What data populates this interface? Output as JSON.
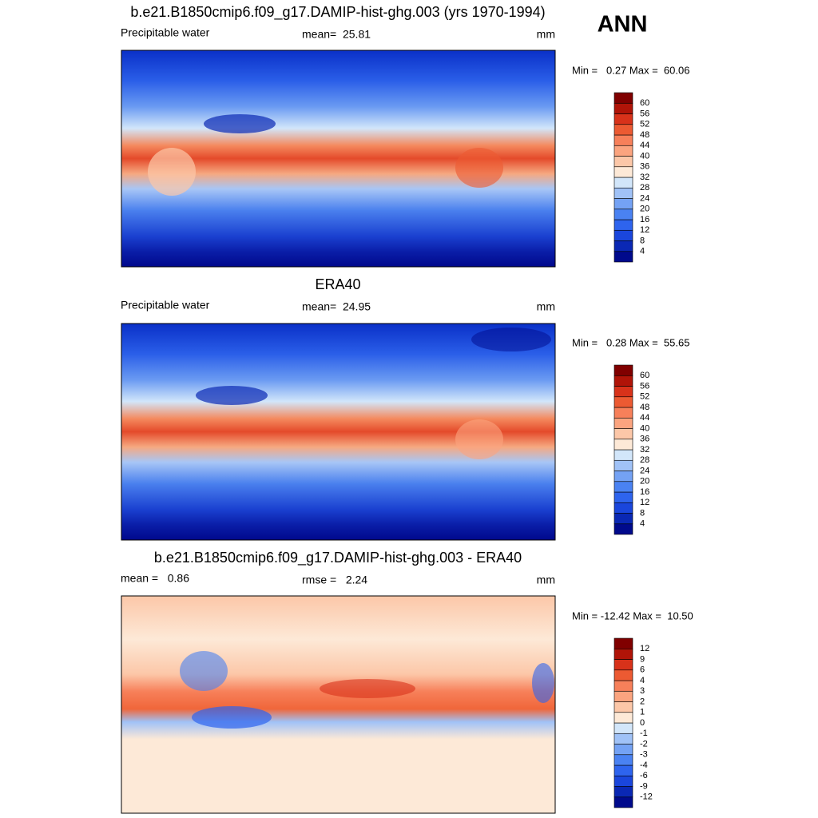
{
  "header": {
    "ann": "ANN"
  },
  "panels": [
    {
      "title": "b.e21.B1850cmip6.f09_g17.DAMIP-hist-ghg.003 (yrs 1970-1994)",
      "left": "Precipitable water",
      "center": "mean=  25.81",
      "right": "mm",
      "minmax": "Min =   0.27 Max =  60.06",
      "colorbar": {
        "levels": [
          4,
          8,
          12,
          16,
          20,
          24,
          28,
          32,
          36,
          40,
          44,
          48,
          52,
          56,
          60
        ],
        "colors": [
          "#000a8c",
          "#0a28b4",
          "#1a46dc",
          "#2e64ee",
          "#4a82f2",
          "#74a2f4",
          "#a0c2f7",
          "#d2e6fa",
          "#fde9d7",
          "#fcc7a8",
          "#fba47f",
          "#f7805a",
          "#ec5a32",
          "#d8321a",
          "#b01408",
          "#800000"
        ]
      }
    },
    {
      "title": "ERA40",
      "left": "Precipitable water",
      "center": "mean=  24.95",
      "right": "mm",
      "minmax": "Min =   0.28 Max =  55.65",
      "colorbar": {
        "levels": [
          4,
          8,
          12,
          16,
          20,
          24,
          28,
          32,
          36,
          40,
          44,
          48,
          52,
          56,
          60
        ],
        "colors": [
          "#000a8c",
          "#0a28b4",
          "#1a46dc",
          "#2e64ee",
          "#4a82f2",
          "#74a2f4",
          "#a0c2f7",
          "#d2e6fa",
          "#fde9d7",
          "#fcc7a8",
          "#fba47f",
          "#f7805a",
          "#ec5a32",
          "#d8321a",
          "#b01408",
          "#800000"
        ]
      }
    },
    {
      "title": "b.e21.B1850cmip6.f09_g17.DAMIP-hist-ghg.003 - ERA40",
      "left": "mean =   0.86",
      "center": "rmse =   2.24",
      "right": "mm",
      "minmax": "Min = -12.42 Max =  10.50",
      "colorbar": {
        "levels": [
          -12,
          -9,
          -6,
          -4,
          -3,
          -2,
          -1,
          0,
          1,
          2,
          3,
          4,
          6,
          9,
          12
        ],
        "colors": [
          "#000a8c",
          "#0a28b4",
          "#1a46dc",
          "#2e64ee",
          "#4a82f2",
          "#74a2f4",
          "#a0c2f7",
          "#d2e6fa",
          "#fde9d7",
          "#fcc7a8",
          "#fba47f",
          "#f7805a",
          "#ec5a32",
          "#d8321a",
          "#b01408",
          "#800000"
        ]
      }
    }
  ]
}
